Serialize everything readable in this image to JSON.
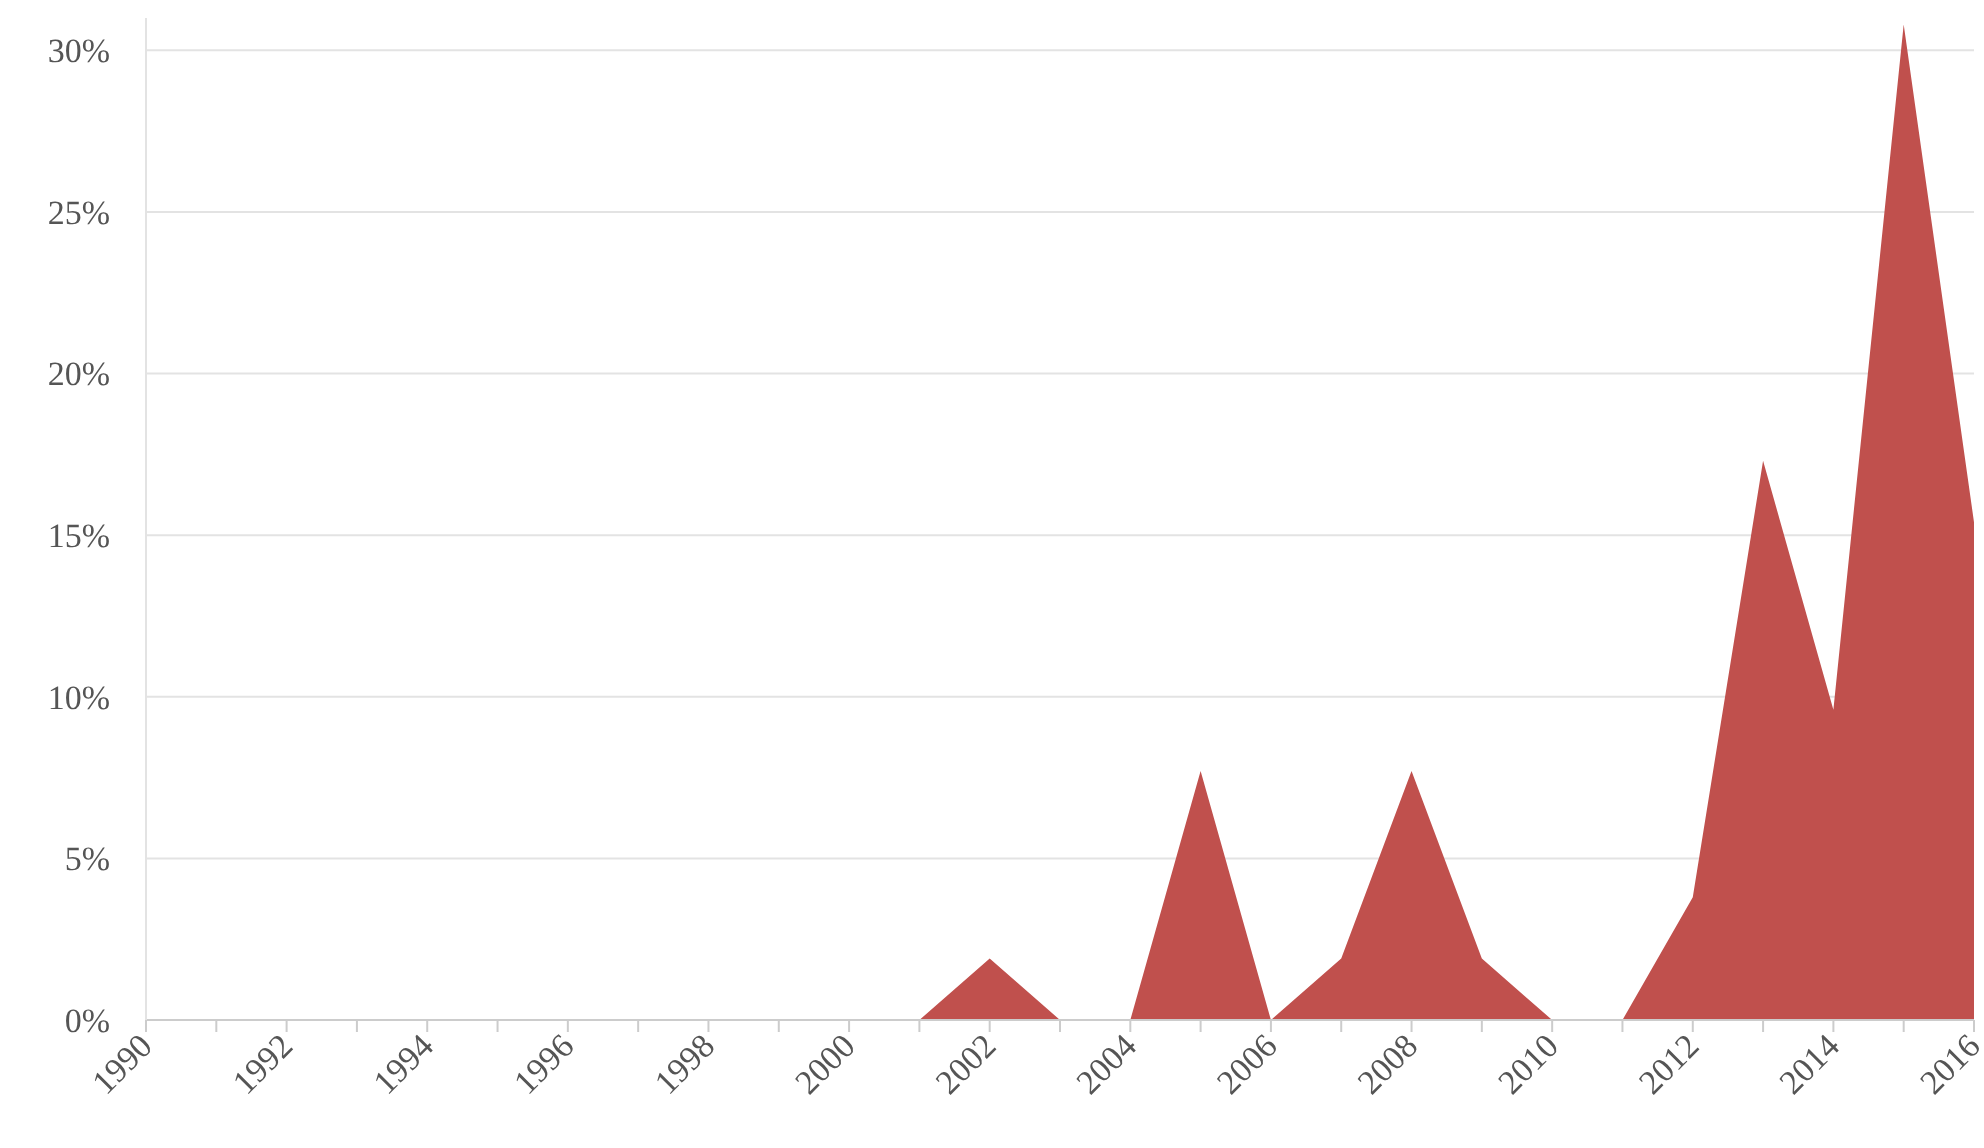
{
  "chart_data": {
    "type": "area",
    "x": [
      1990,
      1991,
      1992,
      1993,
      1994,
      1995,
      1996,
      1997,
      1998,
      1999,
      2000,
      2001,
      2002,
      2003,
      2004,
      2005,
      2006,
      2007,
      2008,
      2009,
      2010,
      2011,
      2012,
      2013,
      2014,
      2015,
      2016
    ],
    "series": [
      {
        "color": "#c0504d",
        "values": [
          0,
          0,
          0,
          0,
          0,
          0,
          0,
          0,
          0,
          0,
          0,
          0,
          1.9,
          0,
          0,
          7.7,
          0,
          1.9,
          7.7,
          1.9,
          0,
          0,
          3.8,
          17.3,
          9.6,
          30.8,
          15.4
        ]
      }
    ],
    "xlim": [
      1990,
      2016
    ],
    "xticks": [
      1990,
      {
        "value": 1991,
        "label": null
      },
      1992,
      {
        "value": 1993,
        "label": null
      },
      1994,
      {
        "value": 1995,
        "label": null
      },
      1996,
      {
        "value": 1997,
        "label": null
      },
      1998,
      {
        "value": 1999,
        "label": null
      },
      2000,
      {
        "value": 2001,
        "label": null
      },
      2002,
      {
        "value": 2003,
        "label": null
      },
      2004,
      {
        "value": 2005,
        "label": null
      },
      2006,
      {
        "value": 2007,
        "label": null
      },
      2008,
      {
        "value": 2009,
        "label": null
      },
      2010,
      {
        "value": 2011,
        "label": null
      },
      2012,
      {
        "value": 2013,
        "label": null
      },
      2014,
      {
        "value": 2015,
        "label": null
      },
      2016
    ],
    "ylim": [
      0,
      31
    ],
    "yticks": [
      {
        "value": 0,
        "label": "0%"
      },
      {
        "value": 5,
        "label": "5%"
      },
      {
        "value": 10,
        "label": "10%"
      },
      {
        "value": 15,
        "label": "15%"
      },
      {
        "value": 20,
        "label": "20%"
      },
      {
        "value": 25,
        "label": "25%"
      },
      {
        "value": 30,
        "label": "30%"
      }
    ],
    "grid": "y"
  }
}
